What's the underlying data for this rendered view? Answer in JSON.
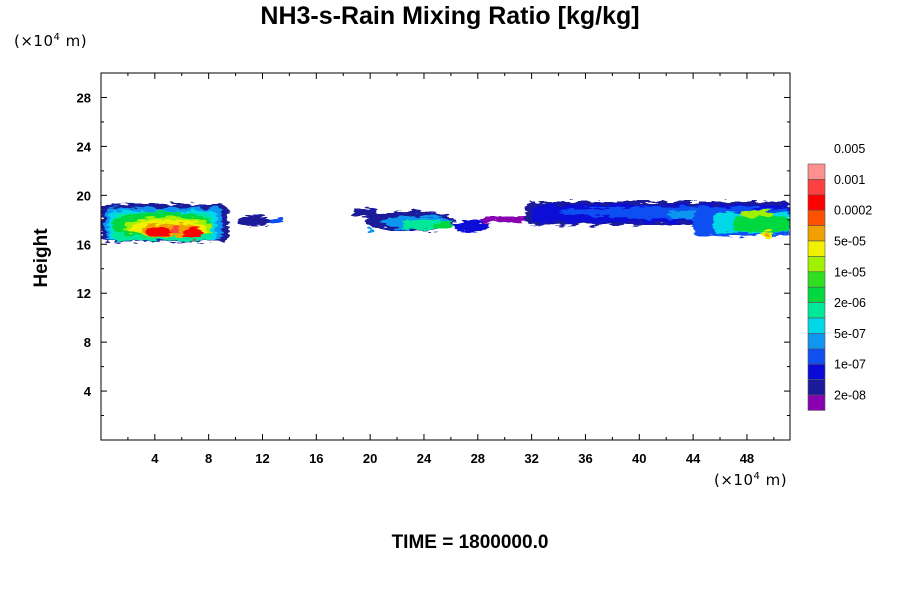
{
  "chart_data": {
    "type": "heatmap",
    "title": "NH3-s-Rain Mixing Ratio [kg/kg]",
    "ylabel": "Height",
    "xlabel": "",
    "x_unit": {
      "prefix": "(×10",
      "exp": "4",
      "suffix": " m)"
    },
    "y_unit": {
      "prefix": "(×10",
      "exp": "4",
      "suffix": " m)"
    },
    "xlim": [
      0,
      51.2
    ],
    "ylim": [
      0,
      30
    ],
    "x_ticks": [
      "4",
      "8",
      "12",
      "16",
      "20",
      "24",
      "28",
      "32",
      "36",
      "40",
      "44",
      "48"
    ],
    "y_ticks": [
      "4",
      "8",
      "12",
      "16",
      "20",
      "24",
      "28"
    ],
    "x_tick_values": [
      4,
      8,
      12,
      16,
      20,
      24,
      28,
      32,
      36,
      40,
      44,
      48
    ],
    "y_tick_values": [
      4,
      8,
      12,
      16,
      20,
      24,
      28
    ],
    "footer": "TIME = 1800000.0",
    "colorbar": {
      "levels": [
        "2e-08",
        "1e-07",
        "5e-07",
        "2e-06",
        "1e-05",
        "5e-05",
        "0.0002",
        "0.001",
        "0.005"
      ],
      "colors": [
        "#8800b0",
        "#1a1a9a",
        "#0a0ad8",
        "#1050f0",
        "#1096f0",
        "#00d8e8",
        "#00e89a",
        "#00d840",
        "#30e020",
        "#a0f000",
        "#f0f000",
        "#f0a000",
        "#ff5000",
        "#ff0000",
        "#ff4040",
        "#ff9090"
      ]
    },
    "cloud_bands": [
      {
        "name": "band-1",
        "x_range": [
          0,
          13.8
        ],
        "y_range": [
          16.0,
          19.4
        ]
      },
      {
        "name": "band-2",
        "x_range": [
          18.5,
          29.0
        ],
        "y_range": [
          16.9,
          19.0
        ]
      },
      {
        "name": "band-3",
        "x_range": [
          28.0,
          51.2
        ],
        "y_range": [
          16.7,
          19.7
        ]
      }
    ]
  }
}
